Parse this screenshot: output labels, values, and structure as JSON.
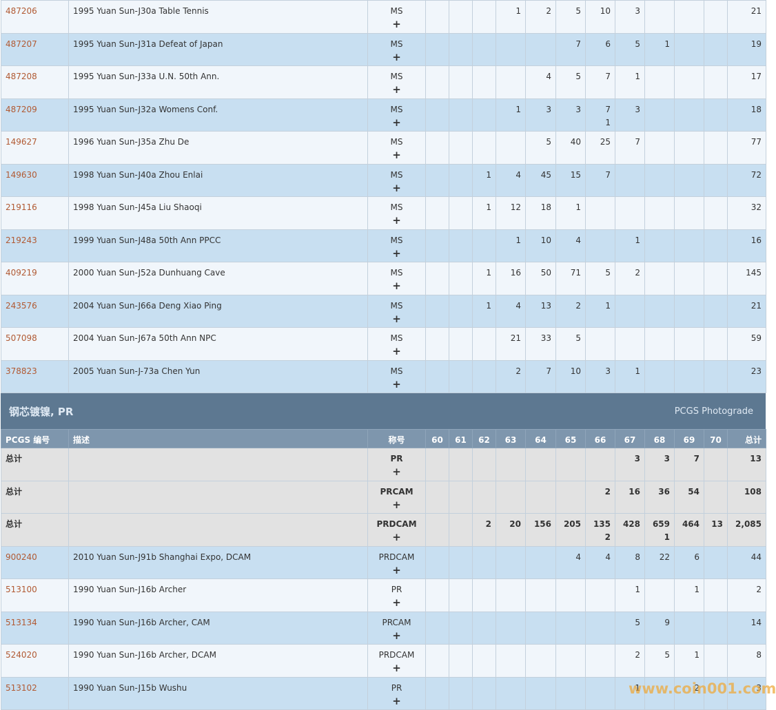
{
  "expand_icon": "+",
  "watermark": "www.coin001.com",
  "rows_top": [
    {
      "id": "487206",
      "desc": "1995 Yuan Sun-J30a Table Tennis",
      "grade": "MS",
      "counts": [
        null,
        null,
        null,
        1,
        2,
        5,
        10,
        3,
        null,
        null,
        null
      ],
      "total": 21
    },
    {
      "id": "487207",
      "desc": "1995 Yuan Sun-J31a Defeat of Japan",
      "grade": "MS",
      "counts": [
        null,
        null,
        null,
        null,
        null,
        7,
        6,
        5,
        1,
        null,
        null
      ],
      "total": 19
    },
    {
      "id": "487208",
      "desc": "1995 Yuan Sun-J33a U.N. 50th Ann.",
      "grade": "MS",
      "counts": [
        null,
        null,
        null,
        null,
        4,
        5,
        7,
        1,
        null,
        null,
        null
      ],
      "total": 17
    },
    {
      "id": "487209",
      "desc": "1995 Yuan Sun-J32a Womens Conf.",
      "grade": "MS",
      "counts": [
        null,
        null,
        null,
        1,
        3,
        3,
        7,
        3,
        null,
        null,
        null
      ],
      "counts_line2": [
        null,
        null,
        null,
        null,
        null,
        null,
        1,
        null,
        null,
        null,
        null
      ],
      "total": 18
    },
    {
      "id": "149627",
      "desc": "1996 Yuan Sun-J35a Zhu De",
      "grade": "MS",
      "counts": [
        null,
        null,
        null,
        null,
        5,
        40,
        25,
        7,
        null,
        null,
        null
      ],
      "total": 77
    },
    {
      "id": "149630",
      "desc": "1998 Yuan Sun-J40a Zhou Enlai",
      "grade": "MS",
      "counts": [
        null,
        null,
        1,
        4,
        45,
        15,
        7,
        null,
        null,
        null,
        null
      ],
      "total": 72
    },
    {
      "id": "219116",
      "desc": "1998 Yuan Sun-J45a Liu Shaoqi",
      "grade": "MS",
      "counts": [
        null,
        null,
        1,
        12,
        18,
        1,
        null,
        null,
        null,
        null,
        null
      ],
      "total": 32
    },
    {
      "id": "219243",
      "desc": "1999 Yuan Sun-J48a 50th Ann PPCC",
      "grade": "MS",
      "counts": [
        null,
        null,
        null,
        1,
        10,
        4,
        null,
        1,
        null,
        null,
        null
      ],
      "total": 16
    },
    {
      "id": "409219",
      "desc": "2000 Yuan Sun-J52a Dunhuang Cave",
      "grade": "MS",
      "counts": [
        null,
        null,
        1,
        16,
        50,
        71,
        5,
        2,
        null,
        null,
        null
      ],
      "total": 145
    },
    {
      "id": "243576",
      "desc": "2004 Yuan Sun-J66a Deng Xiao Ping",
      "grade": "MS",
      "counts": [
        null,
        null,
        1,
        4,
        13,
        2,
        1,
        null,
        null,
        null,
        null
      ],
      "total": 21
    },
    {
      "id": "507098",
      "desc": "2004 Yuan Sun-J67a 50th Ann NPC",
      "grade": "MS",
      "counts": [
        null,
        null,
        null,
        21,
        33,
        5,
        null,
        null,
        null,
        null,
        null
      ],
      "total": 59
    },
    {
      "id": "378823",
      "desc": "2005 Yuan Sun-J-73a Chen Yun",
      "grade": "MS",
      "counts": [
        null,
        null,
        null,
        2,
        7,
        10,
        3,
        1,
        null,
        null,
        null
      ],
      "total": 23
    }
  ],
  "section": {
    "title": "钢芯镀镍, PR",
    "subtitle": "PCGS Photograde",
    "columns": [
      "PCGS 编号",
      "描述",
      "称号",
      "60",
      "61",
      "62",
      "63",
      "64",
      "65",
      "66",
      "67",
      "68",
      "69",
      "70",
      "总计"
    ],
    "rows": [
      {
        "id": "总计",
        "desc": null,
        "grade": "PR",
        "counts": [
          null,
          null,
          null,
          null,
          null,
          null,
          null,
          3,
          3,
          7,
          null
        ],
        "total": 13
      },
      {
        "id": "总计",
        "desc": null,
        "grade": "PRCAM",
        "counts": [
          null,
          null,
          null,
          null,
          null,
          null,
          2,
          16,
          36,
          54,
          null
        ],
        "total": 108
      },
      {
        "id": "总计",
        "desc": null,
        "grade": "PRDCAM",
        "counts": [
          null,
          null,
          2,
          20,
          156,
          205,
          135,
          428,
          659,
          464,
          13
        ],
        "counts_line2": [
          null,
          null,
          null,
          null,
          null,
          null,
          2,
          null,
          1,
          null,
          null
        ],
        "total": "2,085"
      },
      {
        "id": "900240",
        "desc": "2010 Yuan Sun-J91b Shanghai Expo, DCAM",
        "grade": "PRDCAM",
        "counts": [
          null,
          null,
          null,
          null,
          null,
          4,
          4,
          8,
          22,
          6,
          null
        ],
        "total": 44
      },
      {
        "id": "513100",
        "desc": "1990 Yuan Sun-J16b Archer",
        "grade": "PR",
        "counts": [
          null,
          null,
          null,
          null,
          null,
          null,
          null,
          1,
          null,
          1,
          null
        ],
        "total": 2
      },
      {
        "id": "513134",
        "desc": "1990 Yuan Sun-J16b Archer, CAM",
        "grade": "PRCAM",
        "counts": [
          null,
          null,
          null,
          null,
          null,
          null,
          null,
          5,
          9,
          null,
          null
        ],
        "total": 14
      },
      {
        "id": "524020",
        "desc": "1990 Yuan Sun-J16b Archer, DCAM",
        "grade": "PRDCAM",
        "counts": [
          null,
          null,
          null,
          null,
          null,
          null,
          null,
          2,
          5,
          1,
          null
        ],
        "total": 8
      },
      {
        "id": "513102",
        "desc": "1990 Yuan Sun-J15b Wushu",
        "grade": "PR",
        "counts": [
          null,
          null,
          null,
          null,
          null,
          null,
          null,
          1,
          null,
          2,
          null
        ],
        "total": 3
      }
    ]
  }
}
